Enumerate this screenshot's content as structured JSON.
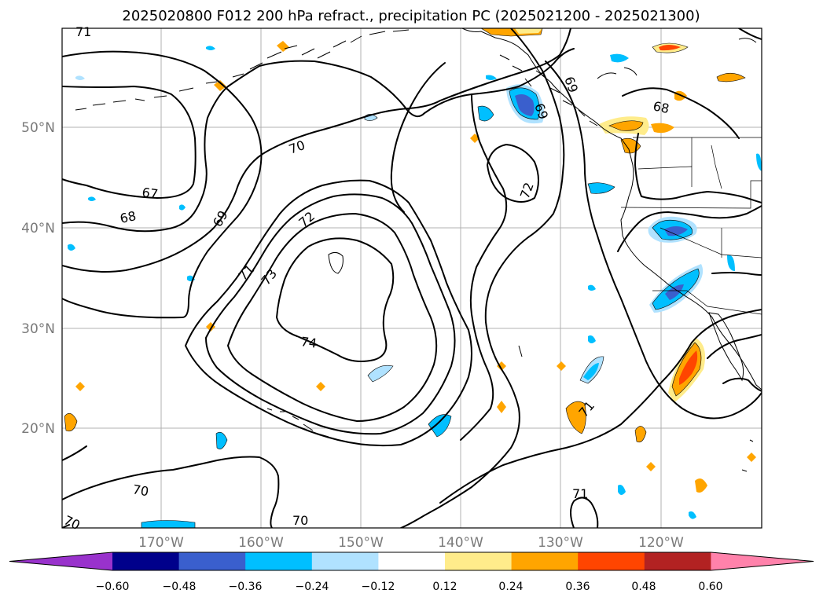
{
  "title": "2025020800 F012 200 hPa refract., precipitation PC (2025021200 - 2025021300)",
  "lat_ticks": [
    "50°N",
    "40°N",
    "30°N",
    "20°N"
  ],
  "lon_ticks": [
    "170°W",
    "160°W",
    "150°W",
    "140°W",
    "130°W",
    "120°W"
  ],
  "contour_labels": [
    "71",
    "70",
    "67",
    "68",
    "69",
    "72",
    "71",
    "73",
    "74",
    "72",
    "69",
    "69",
    "68",
    "71",
    "70",
    "70",
    "70",
    "71"
  ],
  "colorbar": {
    "ticks": [
      "−0.60",
      "−0.48",
      "−0.36",
      "−0.24",
      "−0.12",
      "0.12",
      "0.24",
      "0.36",
      "0.48",
      "0.60"
    ],
    "colors": [
      "#9932cc",
      "#00008b",
      "#3a5fcd",
      "#00bfff",
      "#b0e2ff",
      "#ffffff",
      "#ffec8b",
      "#ffa500",
      "#ff4500",
      "#b22222",
      "#ff82ab"
    ]
  }
}
